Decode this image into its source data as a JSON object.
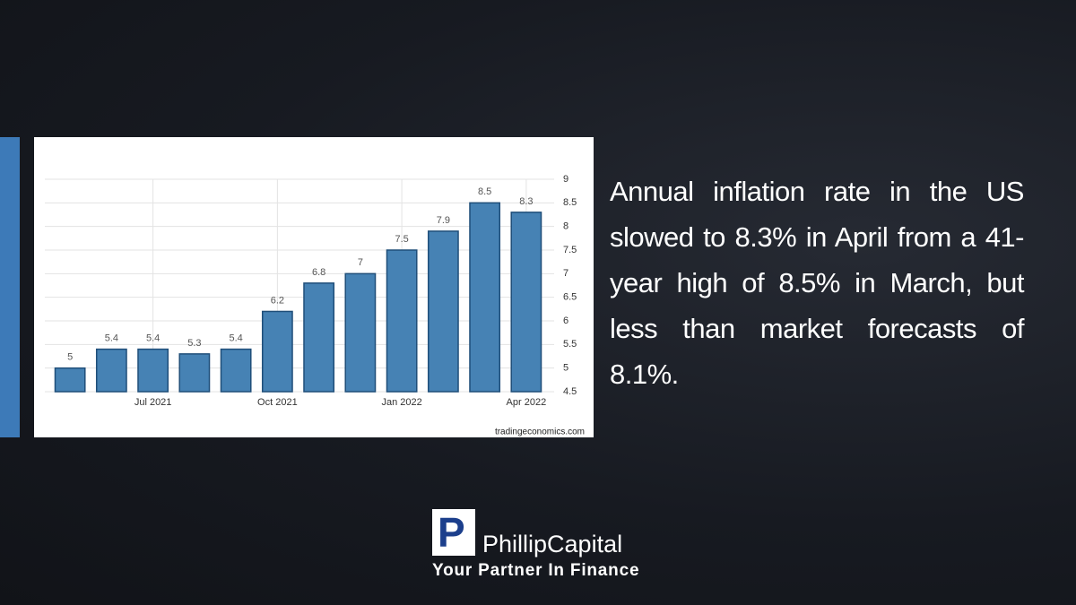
{
  "chart_data": {
    "type": "bar",
    "categories": [
      null,
      null,
      "Jul 2021",
      null,
      null,
      "Oct 2021",
      null,
      null,
      "Jan 2022",
      null,
      null,
      "Apr 2022"
    ],
    "values": [
      5,
      5.4,
      5.4,
      5.3,
      5.4,
      6.2,
      6.8,
      7,
      7.5,
      7.9,
      8.5,
      8.3
    ],
    "color": "#4682b4",
    "ylim": [
      4.5,
      9
    ],
    "yticks": [
      4.5,
      5,
      5.5,
      6,
      6.5,
      7,
      7.5,
      8,
      8.5,
      9
    ],
    "grid": true,
    "source": "tradingeconomics.com"
  },
  "caption": "Annual inflation rate in the US slowed to 8.3% in April from a 41-year high of 8.5% in March, but less than market forecasts of 8.1%.",
  "brand": {
    "mark": "P",
    "name": "PhillipCapital",
    "tagline": "Your Partner In Finance"
  }
}
